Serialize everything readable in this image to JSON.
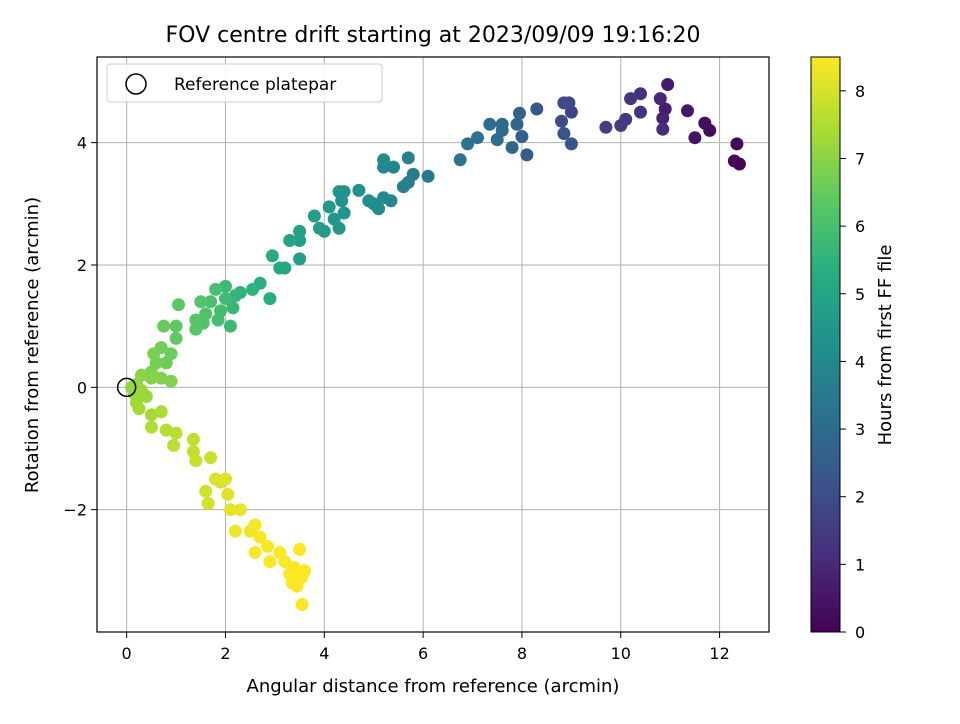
{
  "chart_data": {
    "type": "scatter",
    "title": "FOV centre drift starting at 2023/09/09 19:16:20",
    "xlabel": "Angular distance from reference (arcmin)",
    "ylabel": "Rotation from reference (arcmin)",
    "xlim": [
      -0.6,
      13.0
    ],
    "ylim": [
      -4.0,
      5.4
    ],
    "x_ticks": [
      0,
      2,
      4,
      6,
      8,
      10,
      12
    ],
    "y_ticks": [
      -2,
      0,
      2,
      4
    ],
    "grid": true,
    "legend": {
      "position": "top-left",
      "entries": [
        "Reference platepar"
      ]
    },
    "reference_marker": {
      "x": 0,
      "y": 0,
      "label": "Reference platepar"
    },
    "colorbar": {
      "label": "Hours from first FF file",
      "range": [
        0,
        8.5
      ],
      "ticks": [
        0,
        1,
        2,
        3,
        4,
        5,
        6,
        7,
        8
      ],
      "colormap": "viridis"
    },
    "points": [
      [
        12.4,
        3.65,
        0.05
      ],
      [
        12.3,
        3.7,
        0.1
      ],
      [
        12.35,
        3.98,
        0.15
      ],
      [
        11.8,
        4.2,
        0.25
      ],
      [
        11.7,
        4.32,
        0.35
      ],
      [
        11.5,
        4.08,
        0.45
      ],
      [
        11.35,
        4.52,
        0.55
      ],
      [
        10.95,
        4.95,
        0.65
      ],
      [
        10.9,
        4.55,
        0.75
      ],
      [
        10.85,
        4.4,
        0.85
      ],
      [
        10.8,
        4.72,
        0.95
      ],
      [
        10.85,
        4.22,
        1.05
      ],
      [
        10.4,
        4.8,
        1.15
      ],
      [
        10.4,
        4.5,
        1.25
      ],
      [
        10.2,
        4.72,
        1.35
      ],
      [
        10.1,
        4.38,
        1.45
      ],
      [
        10.0,
        4.28,
        1.55
      ],
      [
        9.7,
        4.25,
        1.65
      ],
      [
        9.0,
        4.5,
        1.75
      ],
      [
        8.95,
        4.65,
        1.85
      ],
      [
        8.85,
        4.65,
        1.95
      ],
      [
        8.8,
        4.35,
        2.05
      ],
      [
        8.85,
        4.15,
        2.15
      ],
      [
        9.0,
        3.98,
        2.25
      ],
      [
        8.3,
        4.55,
        2.35
      ],
      [
        8.1,
        3.8,
        2.45
      ],
      [
        8.0,
        4.1,
        2.55
      ],
      [
        7.95,
        4.48,
        2.65
      ],
      [
        7.9,
        4.3,
        2.75
      ],
      [
        7.8,
        3.92,
        2.85
      ],
      [
        7.6,
        4.3,
        2.95
      ],
      [
        7.6,
        4.2,
        3.0
      ],
      [
        7.5,
        4.05,
        3.05
      ],
      [
        7.35,
        4.3,
        3.1
      ],
      [
        7.1,
        4.08,
        3.15
      ],
      [
        6.9,
        3.98,
        3.25
      ],
      [
        6.75,
        3.72,
        3.35
      ],
      [
        6.1,
        3.45,
        3.45
      ],
      [
        5.8,
        3.48,
        3.55
      ],
      [
        5.7,
        3.35,
        3.6
      ],
      [
        5.6,
        3.28,
        3.7
      ],
      [
        5.7,
        3.75,
        3.8
      ],
      [
        5.4,
        3.6,
        3.85
      ],
      [
        5.35,
        3.05,
        3.9
      ],
      [
        5.2,
        3.6,
        3.95
      ],
      [
        5.2,
        3.72,
        4.0
      ],
      [
        5.2,
        3.1,
        4.05
      ],
      [
        5.1,
        2.92,
        4.1
      ],
      [
        5.0,
        3.0,
        4.15
      ],
      [
        4.9,
        3.05,
        4.2
      ],
      [
        4.7,
        3.22,
        4.25
      ],
      [
        4.4,
        3.2,
        4.3
      ],
      [
        4.35,
        3.05,
        4.35
      ],
      [
        4.3,
        3.2,
        4.4
      ],
      [
        4.4,
        2.85,
        4.45
      ],
      [
        4.3,
        2.6,
        4.5
      ],
      [
        4.2,
        2.75,
        4.55
      ],
      [
        4.1,
        2.95,
        4.6
      ],
      [
        4.0,
        2.55,
        4.65
      ],
      [
        3.9,
        2.6,
        4.7
      ],
      [
        3.8,
        2.8,
        4.75
      ],
      [
        3.5,
        2.1,
        4.8
      ],
      [
        3.5,
        2.4,
        4.85
      ],
      [
        3.5,
        2.55,
        4.9
      ],
      [
        3.3,
        2.4,
        4.95
      ],
      [
        3.2,
        1.95,
        5.0
      ],
      [
        3.1,
        1.95,
        5.1
      ],
      [
        2.95,
        2.15,
        5.2
      ],
      [
        2.9,
        1.45,
        5.3
      ],
      [
        2.7,
        1.7,
        5.4
      ],
      [
        2.55,
        1.6,
        5.5
      ],
      [
        2.3,
        1.55,
        5.55
      ],
      [
        2.2,
        1.5,
        5.6
      ],
      [
        2.15,
        1.3,
        5.7
      ],
      [
        2.1,
        1.0,
        5.75
      ],
      [
        2.0,
        1.65,
        5.8
      ],
      [
        2.0,
        1.45,
        5.85
      ],
      [
        1.9,
        1.25,
        5.9
      ],
      [
        1.85,
        1.1,
        5.95
      ],
      [
        1.8,
        1.6,
        6.0
      ],
      [
        1.7,
        1.4,
        6.05
      ],
      [
        1.6,
        1.2,
        6.1
      ],
      [
        1.55,
        1.05,
        6.15
      ],
      [
        1.5,
        1.4,
        6.2
      ],
      [
        1.4,
        1.1,
        6.25
      ],
      [
        1.4,
        0.95,
        6.3
      ],
      [
        1.05,
        1.35,
        6.35
      ],
      [
        1.0,
        1.0,
        6.4
      ],
      [
        1.0,
        0.8,
        6.45
      ],
      [
        0.75,
        1.0,
        6.5
      ],
      [
        0.9,
        0.55,
        6.55
      ],
      [
        0.8,
        0.4,
        6.6
      ],
      [
        0.7,
        0.65,
        6.65
      ],
      [
        0.6,
        0.4,
        6.7
      ],
      [
        0.55,
        0.55,
        6.75
      ],
      [
        0.5,
        0.25,
        6.8
      ],
      [
        0.9,
        0.1,
        6.85
      ],
      [
        0.7,
        0.15,
        6.9
      ],
      [
        0.5,
        0.15,
        6.95
      ],
      [
        0.3,
        0.2,
        7.0
      ],
      [
        0.2,
        0.05,
        7.05
      ],
      [
        0.1,
        0.0,
        7.1
      ],
      [
        0.15,
        -0.1,
        7.15
      ],
      [
        0.3,
        -0.05,
        7.2
      ],
      [
        0.4,
        -0.15,
        7.25
      ],
      [
        0.2,
        -0.25,
        7.3
      ],
      [
        0.25,
        -0.35,
        7.35
      ],
      [
        0.5,
        -0.45,
        7.4
      ],
      [
        0.7,
        -0.4,
        7.45
      ],
      [
        0.5,
        -0.65,
        7.5
      ],
      [
        0.8,
        -0.7,
        7.55
      ],
      [
        1.0,
        -0.75,
        7.6
      ],
      [
        0.95,
        -0.95,
        7.65
      ],
      [
        1.35,
        -0.85,
        7.7
      ],
      [
        1.35,
        -1.05,
        7.75
      ],
      [
        1.4,
        -1.2,
        7.8
      ],
      [
        1.7,
        -1.15,
        7.85
      ],
      [
        1.6,
        -1.7,
        7.9
      ],
      [
        1.65,
        -1.9,
        7.95
      ],
      [
        1.8,
        -1.5,
        8.0
      ],
      [
        1.9,
        -1.55,
        8.05
      ],
      [
        2.0,
        -1.5,
        8.1
      ],
      [
        2.05,
        -1.75,
        8.15
      ],
      [
        2.1,
        -2.0,
        8.2
      ],
      [
        2.3,
        -2.0,
        8.25
      ],
      [
        2.2,
        -2.35,
        8.3
      ],
      [
        2.5,
        -2.35,
        8.35
      ],
      [
        2.6,
        -2.25,
        8.4
      ],
      [
        2.6,
        -2.7,
        8.42
      ],
      [
        2.7,
        -2.45,
        8.44
      ],
      [
        2.85,
        -2.6,
        8.45
      ],
      [
        2.9,
        -2.85,
        8.46
      ],
      [
        3.1,
        -2.7,
        8.47
      ],
      [
        3.2,
        -2.85,
        8.48
      ],
      [
        3.3,
        -3.05,
        8.49
      ],
      [
        3.35,
        -3.2,
        8.5
      ],
      [
        3.4,
        -2.95,
        8.5
      ],
      [
        3.5,
        -2.65,
        8.5
      ],
      [
        3.55,
        -3.1,
        8.5
      ],
      [
        3.45,
        -3.25,
        8.5
      ],
      [
        3.6,
        -3.0,
        8.5
      ],
      [
        3.55,
        -3.55,
        8.5
      ]
    ]
  }
}
